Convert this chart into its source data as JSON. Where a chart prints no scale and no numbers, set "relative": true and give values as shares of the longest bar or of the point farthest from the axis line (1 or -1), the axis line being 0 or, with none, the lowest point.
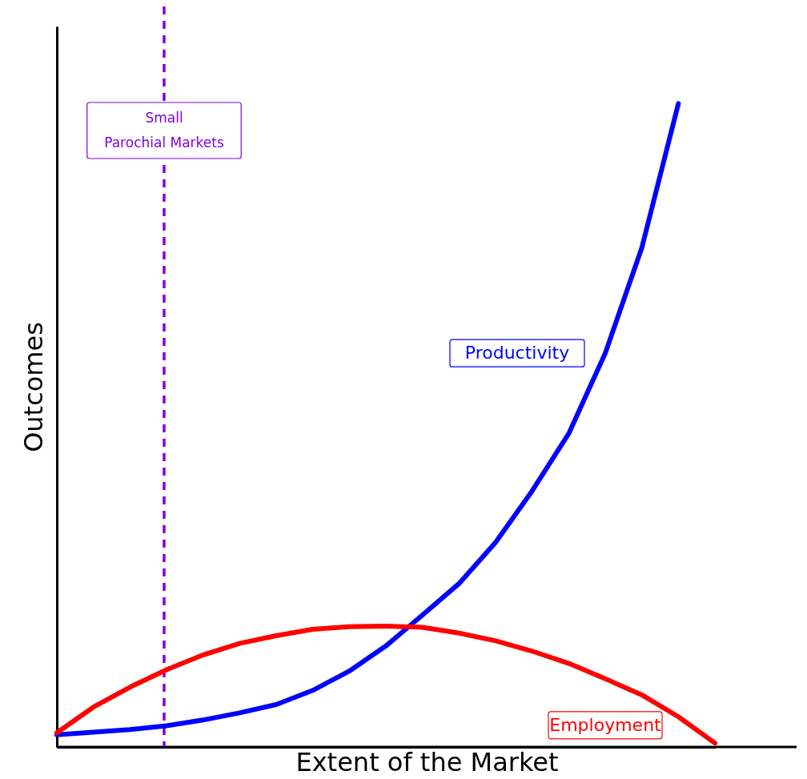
{
  "chart_data": {
    "type": "line",
    "relative": true,
    "xlabel": "Extent of the Market",
    "ylabel": "Outcomes",
    "categories": [
      null,
      null,
      null,
      null,
      null,
      null,
      null,
      null,
      null,
      null,
      null,
      null,
      null,
      null,
      null,
      null,
      null,
      null,
      null
    ],
    "tick_labels": false,
    "grid": false,
    "legend": false,
    "marker": "none",
    "line_style": "solid",
    "series": [
      {
        "name": "Productivity",
        "color": "#0000ff",
        "values": [
          0.019,
          0.023,
          0.027,
          0.033,
          0.042,
          0.053,
          0.066,
          0.088,
          0.118,
          0.157,
          0.205,
          0.254,
          0.318,
          0.398,
          0.487,
          0.612,
          0.776,
          1,
          null
        ]
      },
      {
        "name": "Employment",
        "color": "#ff0000",
        "values": [
          0.022,
          0.062,
          0.093,
          0.12,
          0.143,
          0.161,
          0.173,
          0.183,
          0.187,
          0.188,
          0.186,
          0.177,
          0.165,
          0.149,
          0.13,
          0.106,
          0.081,
          0.047,
          0.006
        ]
      }
    ],
    "annotations": [
      "Small Parochial Markets"
    ]
  }
}
